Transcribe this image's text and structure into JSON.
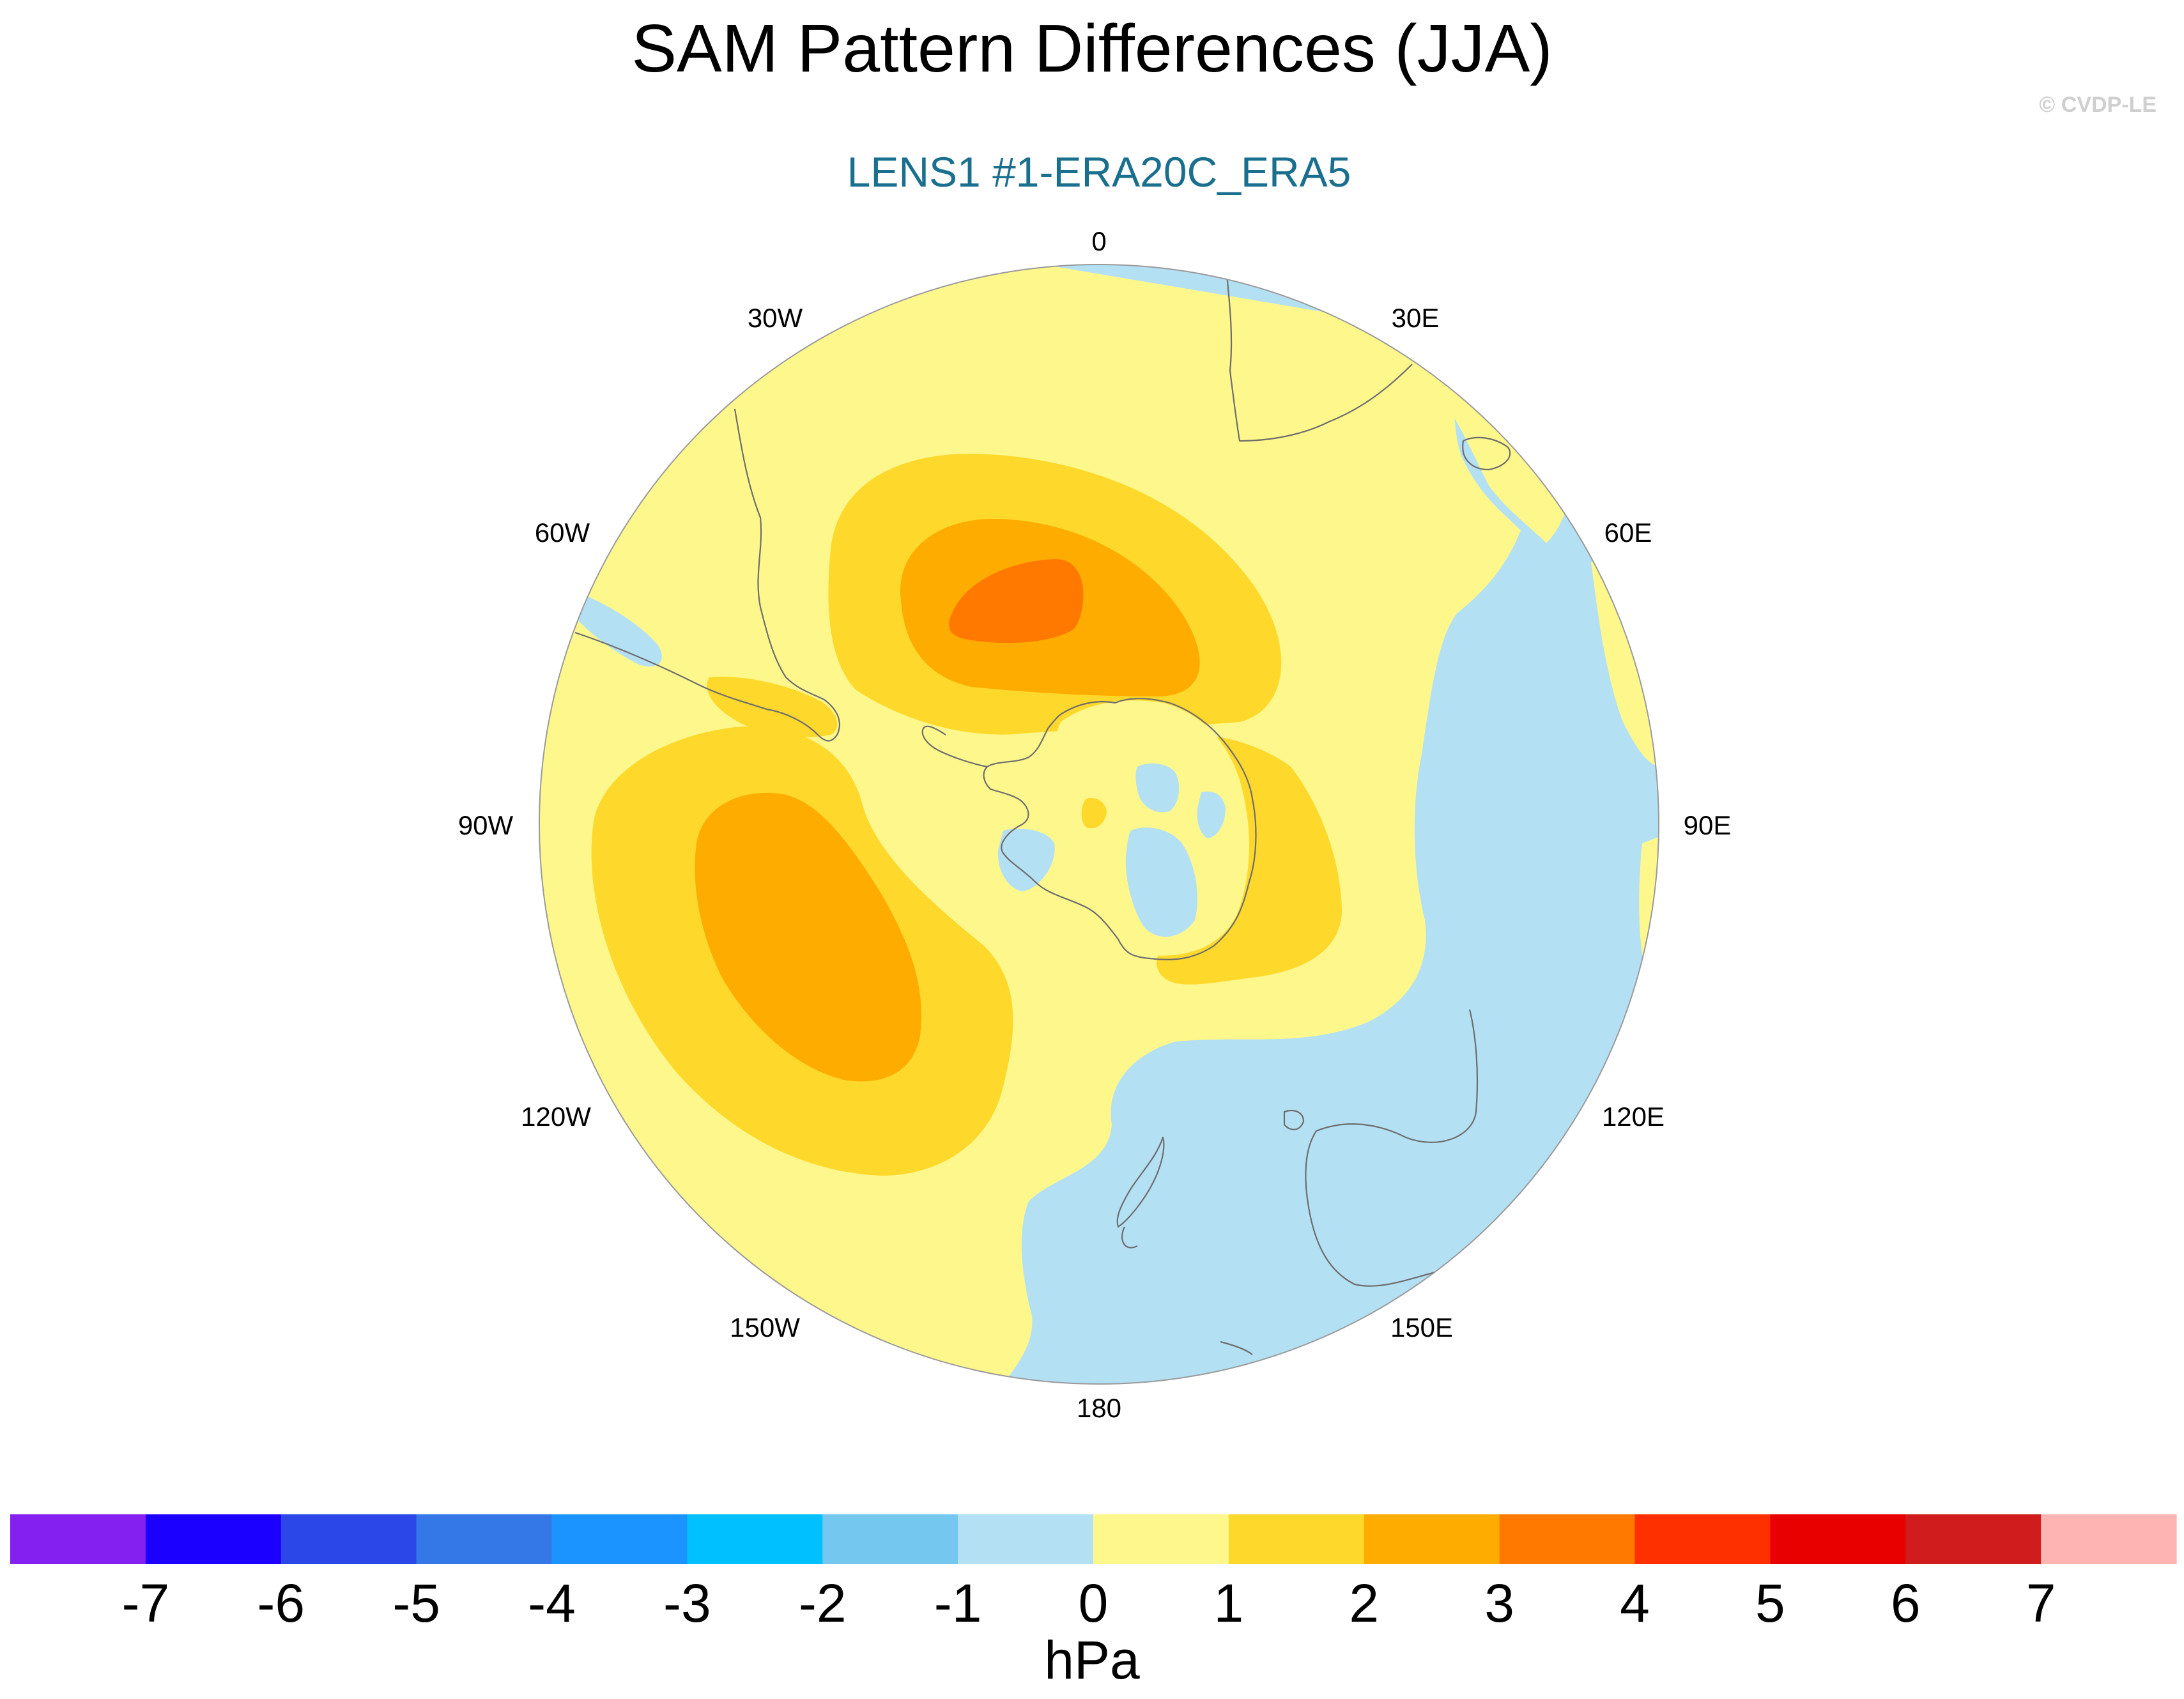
{
  "figure": {
    "title": "SAM Pattern Differences (JJA)",
    "subtitle": "LENS1 #1-ERA20C_ERA5",
    "credit": "© CVDP-LE",
    "subtitle_color": "#1a6f8e"
  },
  "map": {
    "projection": "south-polar-stereographic",
    "longitude_labels": [
      {
        "lon": 0,
        "label": "0"
      },
      {
        "lon": 30,
        "label": "30E"
      },
      {
        "lon": 60,
        "label": "60E"
      },
      {
        "lon": 90,
        "label": "90E"
      },
      {
        "lon": 120,
        "label": "120E"
      },
      {
        "lon": 150,
        "label": "150E"
      },
      {
        "lon": 180,
        "label": "180"
      },
      {
        "lon": -150,
        "label": "150W"
      },
      {
        "lon": -120,
        "label": "120W"
      },
      {
        "lon": -90,
        "label": "90W"
      },
      {
        "lon": -60,
        "label": "60W"
      },
      {
        "lon": -30,
        "label": "30W"
      }
    ],
    "field": "SAM sea level pressure pattern difference",
    "regions": {
      "background_bin": "0 to 1",
      "negative_bin": "-1 to 0",
      "maxima": [
        {
          "name": "south-atlantic-maximum",
          "peak_bin": "3 to 4"
        },
        {
          "name": "pacific-maximum",
          "peak_bin": "2 to 3"
        },
        {
          "name": "east-antarctic-maximum",
          "peak_bin": "1 to 2"
        }
      ]
    }
  },
  "colorbar": {
    "units": "hPa",
    "tick_labels": [
      "-7",
      "-6",
      "-5",
      "-4",
      "-3",
      "-2",
      "-1",
      "0",
      "1",
      "2",
      "3",
      "4",
      "5",
      "6",
      "7"
    ],
    "colors": [
      "#8420f0",
      "#1c00ff",
      "#2c47e8",
      "#3478e8",
      "#1c94ff",
      "#00c0ff",
      "#74c8f0",
      "#b4e0f4",
      "#fef88c",
      "#ffd82c",
      "#ffac00",
      "#ff7800",
      "#ff3000",
      "#e80000",
      "#d01c1c",
      "#ffb4b4"
    ]
  }
}
